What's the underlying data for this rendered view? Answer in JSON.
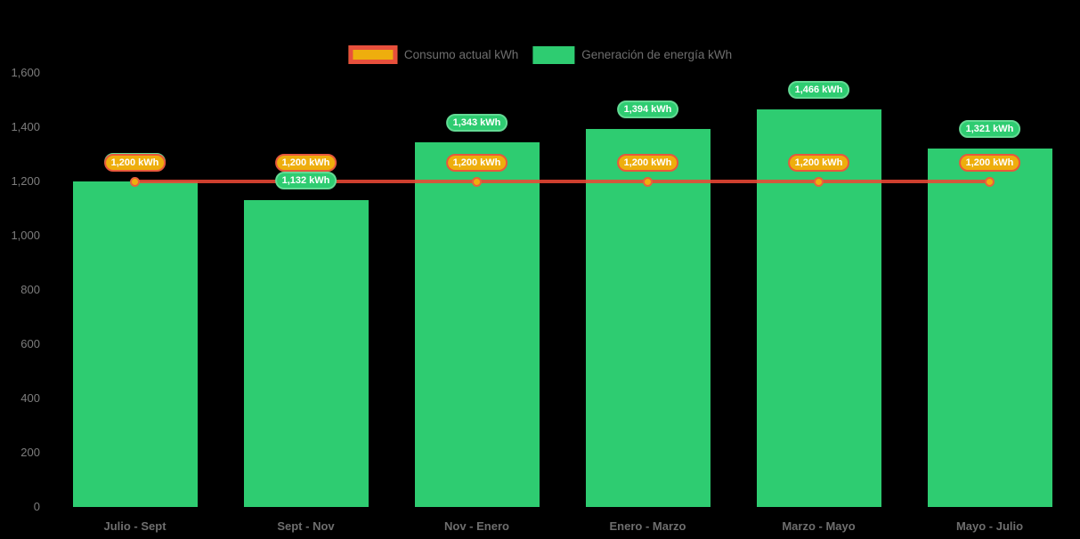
{
  "chart_data": {
    "type": "bar",
    "title": "",
    "categories": [
      "Julio - Sept",
      "Sept - Nov",
      "Nov - Enero",
      "Enero - Marzo",
      "Marzo - Mayo",
      "Mayo - Julio"
    ],
    "series": [
      {
        "name": "Consumo actual kWh",
        "type": "line",
        "color": "#e74c3c",
        "marker_fill": "#f0ae0d",
        "marker_border": "#e8623c",
        "label_fill": "#eeae0d",
        "label_border": "#e8583c",
        "values": [
          1200,
          1200,
          1200,
          1200,
          1200,
          1200
        ],
        "point_labels": [
          "1,200 kWh",
          "1,200 kWh",
          "1,200 kWh",
          "1,200 kWh",
          "1,200 kWh",
          "1,200 kWh"
        ]
      },
      {
        "name": "Generación de energía kWh",
        "type": "bar",
        "color": "#2ecc71",
        "label_fill": "#2ecc71",
        "label_border": "#63da94",
        "values": [
          1200,
          1132,
          1343,
          1394,
          1466,
          1321
        ],
        "point_labels": [
          "1,200 kWh",
          "1,132 kWh",
          "1,343 kWh",
          "1,394 kWh",
          "1,466 kWh",
          "1,321 kWh"
        ]
      }
    ],
    "xlabel": "",
    "ylabel": "",
    "ylim": [
      0,
      1600
    ],
    "yticks": [
      0,
      200,
      400,
      600,
      800,
      1000,
      1200,
      1400,
      1600
    ],
    "ytick_labels": [
      "0",
      "200",
      "400",
      "600",
      "800",
      "1,000",
      "1,200",
      "1,400",
      "1,600"
    ],
    "grid": false,
    "legend_position": "top",
    "background": "#000000",
    "text_color": "#6e6e6e"
  }
}
